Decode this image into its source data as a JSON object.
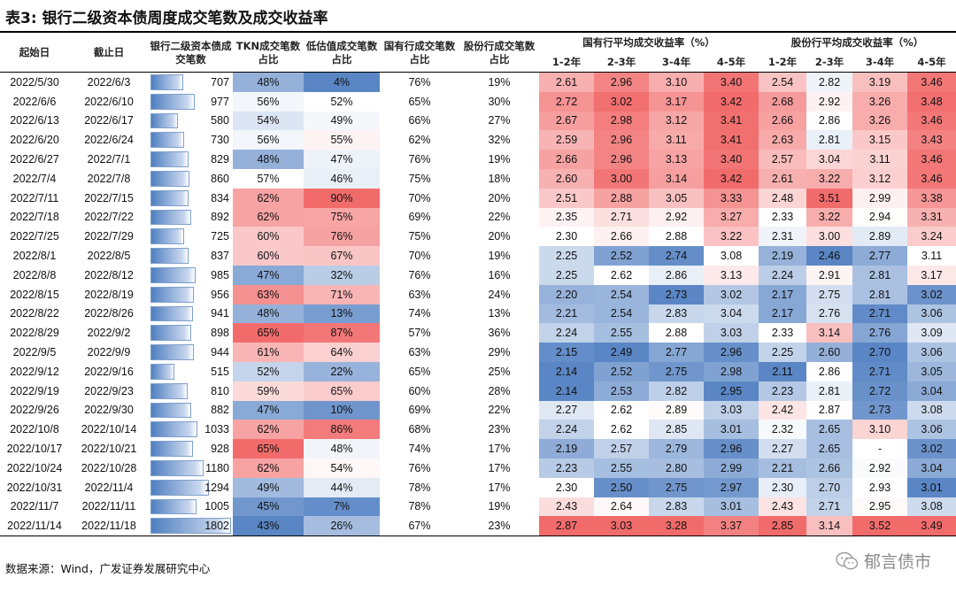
{
  "title": "表3: 银行二级资本债周度成交笔数及成交收益率",
  "headers": {
    "start": "起始日",
    "end": "截止日",
    "count": "银行二级资本债成交笔数",
    "tkn": "TKN成交笔数占比",
    "low": "低估值成交笔数占比",
    "state": "国有行成交笔数占比",
    "joint": "股份行成交笔数占比",
    "state_yield": "国有行平均成交收益率（%）",
    "joint_yield": "股份行平均成交收益率（%）",
    "terms": [
      "1-2年",
      "2-3年",
      "3-4年",
      "4-5年",
      "1-2年",
      "2-3年",
      "3-4年",
      "4-5年"
    ]
  },
  "rows": [
    {
      "start": "2022/5/30",
      "end": "2022/6/3",
      "count": "707",
      "tkn": "48%",
      "low": "4%",
      "state": "76%",
      "joint": "19%",
      "y": [
        "2.61",
        "2.96",
        "3.10",
        "3.40",
        "2.54",
        "2.82",
        "3.19",
        "3.46"
      ]
    },
    {
      "start": "2022/6/6",
      "end": "2022/6/10",
      "count": "977",
      "tkn": "56%",
      "low": "52%",
      "state": "65%",
      "joint": "30%",
      "y": [
        "2.72",
        "3.02",
        "3.17",
        "3.42",
        "2.68",
        "2.92",
        "3.26",
        "3.48"
      ]
    },
    {
      "start": "2022/6/13",
      "end": "2022/6/17",
      "count": "580",
      "tkn": "54%",
      "low": "49%",
      "state": "66%",
      "joint": "27%",
      "y": [
        "2.67",
        "2.98",
        "3.12",
        "3.41",
        "2.66",
        "2.86",
        "3.26",
        "3.46"
      ]
    },
    {
      "start": "2022/6/20",
      "end": "2022/6/24",
      "count": "730",
      "tkn": "56%",
      "low": "55%",
      "state": "62%",
      "joint": "32%",
      "y": [
        "2.59",
        "2.96",
        "3.11",
        "3.41",
        "2.63",
        "2.81",
        "3.15",
        "3.43"
      ]
    },
    {
      "start": "2022/6/27",
      "end": "2022/7/1",
      "count": "829",
      "tkn": "48%",
      "low": "47%",
      "state": "76%",
      "joint": "19%",
      "y": [
        "2.66",
        "2.96",
        "3.13",
        "3.40",
        "2.57",
        "3.04",
        "3.11",
        "3.46"
      ]
    },
    {
      "start": "2022/7/4",
      "end": "2022/7/8",
      "count": "860",
      "tkn": "57%",
      "low": "46%",
      "state": "75%",
      "joint": "18%",
      "y": [
        "2.60",
        "3.00",
        "3.14",
        "3.42",
        "2.61",
        "3.22",
        "3.12",
        "3.46"
      ]
    },
    {
      "start": "2022/7/11",
      "end": "2022/7/15",
      "count": "834",
      "tkn": "62%",
      "low": "90%",
      "state": "70%",
      "joint": "20%",
      "y": [
        "2.51",
        "2.88",
        "3.05",
        "3.33",
        "2.48",
        "3.51",
        "2.99",
        "3.38"
      ]
    },
    {
      "start": "2022/7/18",
      "end": "2022/7/22",
      "count": "892",
      "tkn": "62%",
      "low": "75%",
      "state": "69%",
      "joint": "22%",
      "y": [
        "2.35",
        "2.71",
        "2.92",
        "3.27",
        "2.33",
        "3.22",
        "2.94",
        "3.31"
      ]
    },
    {
      "start": "2022/7/25",
      "end": "2022/7/29",
      "count": "725",
      "tkn": "60%",
      "low": "76%",
      "state": "75%",
      "joint": "20%",
      "y": [
        "2.30",
        "2.66",
        "2.88",
        "3.22",
        "2.31",
        "3.00",
        "2.89",
        "3.24"
      ]
    },
    {
      "start": "2022/8/1",
      "end": "2022/8/5",
      "count": "837",
      "tkn": "60%",
      "low": "67%",
      "state": "70%",
      "joint": "19%",
      "y": [
        "2.25",
        "2.52",
        "2.74",
        "3.08",
        "2.19",
        "2.46",
        "2.77",
        "3.11"
      ]
    },
    {
      "start": "2022/8/8",
      "end": "2022/8/12",
      "count": "985",
      "tkn": "47%",
      "low": "32%",
      "state": "76%",
      "joint": "16%",
      "y": [
        "2.25",
        "2.62",
        "2.86",
        "3.13",
        "2.24",
        "2.91",
        "2.81",
        "3.17"
      ]
    },
    {
      "start": "2022/8/15",
      "end": "2022/8/19",
      "count": "956",
      "tkn": "63%",
      "low": "71%",
      "state": "63%",
      "joint": "24%",
      "y": [
        "2.20",
        "2.54",
        "2.73",
        "3.02",
        "2.17",
        "2.75",
        "2.81",
        "3.02"
      ]
    },
    {
      "start": "2022/8/22",
      "end": "2022/8/26",
      "count": "941",
      "tkn": "48%",
      "low": "13%",
      "state": "74%",
      "joint": "13%",
      "y": [
        "2.21",
        "2.54",
        "2.83",
        "3.04",
        "2.17",
        "2.76",
        "2.71",
        "3.06"
      ]
    },
    {
      "start": "2022/8/29",
      "end": "2022/9/2",
      "count": "898",
      "tkn": "65%",
      "low": "87%",
      "state": "57%",
      "joint": "36%",
      "y": [
        "2.24",
        "2.55",
        "2.88",
        "3.03",
        "2.33",
        "3.14",
        "2.76",
        "3.09"
      ]
    },
    {
      "start": "2022/9/5",
      "end": "2022/9/9",
      "count": "944",
      "tkn": "61%",
      "low": "64%",
      "state": "63%",
      "joint": "29%",
      "y": [
        "2.15",
        "2.49",
        "2.77",
        "2.96",
        "2.25",
        "2.60",
        "2.70",
        "3.06"
      ]
    },
    {
      "start": "2022/9/12",
      "end": "2022/9/16",
      "count": "515",
      "tkn": "52%",
      "low": "22%",
      "state": "65%",
      "joint": "25%",
      "y": [
        "2.14",
        "2.52",
        "2.75",
        "2.98",
        "2.11",
        "2.86",
        "2.71",
        "3.05"
      ]
    },
    {
      "start": "2022/9/19",
      "end": "2022/9/23",
      "count": "810",
      "tkn": "59%",
      "low": "65%",
      "state": "60%",
      "joint": "28%",
      "y": [
        "2.14",
        "2.53",
        "2.82",
        "2.95",
        "2.23",
        "2.81",
        "2.72",
        "3.04"
      ]
    },
    {
      "start": "2022/9/26",
      "end": "2022/9/30",
      "count": "882",
      "tkn": "47%",
      "low": "10%",
      "state": "69%",
      "joint": "22%",
      "y": [
        "2.27",
        "2.62",
        "2.89",
        "3.03",
        "2.42",
        "2.87",
        "2.73",
        "3.08"
      ]
    },
    {
      "start": "2022/10/8",
      "end": "2022/10/14",
      "count": "1033",
      "tkn": "62%",
      "low": "86%",
      "state": "68%",
      "joint": "23%",
      "y": [
        "2.24",
        "2.62",
        "2.85",
        "3.01",
        "2.32",
        "2.65",
        "3.10",
        "3.06"
      ]
    },
    {
      "start": "2022/10/17",
      "end": "2022/10/21",
      "count": "928",
      "tkn": "65%",
      "low": "48%",
      "state": "74%",
      "joint": "17%",
      "y": [
        "2.19",
        "2.57",
        "2.79",
        "2.96",
        "2.27",
        "2.65",
        "-",
        "3.02"
      ]
    },
    {
      "start": "2022/10/24",
      "end": "2022/10/28",
      "count": "1180",
      "tkn": "62%",
      "low": "54%",
      "state": "76%",
      "joint": "17%",
      "y": [
        "2.23",
        "2.55",
        "2.80",
        "2.99",
        "2.21",
        "2.66",
        "2.92",
        "3.04"
      ]
    },
    {
      "start": "2022/10/31",
      "end": "2022/11/4",
      "count": "1294",
      "tkn": "49%",
      "low": "44%",
      "state": "78%",
      "joint": "17%",
      "y": [
        "2.30",
        "2.50",
        "2.75",
        "2.97",
        "2.30",
        "2.70",
        "2.93",
        "3.01"
      ]
    },
    {
      "start": "2022/11/7",
      "end": "2022/11/11",
      "count": "1005",
      "tkn": "45%",
      "low": "7%",
      "state": "78%",
      "joint": "19%",
      "y": [
        "2.43",
        "2.64",
        "2.83",
        "3.01",
        "2.43",
        "2.71",
        "2.95",
        "3.08"
      ]
    },
    {
      "start": "2022/11/14",
      "end": "2022/11/18",
      "count": "1802",
      "tkn": "43%",
      "low": "26%",
      "state": "67%",
      "joint": "23%",
      "y": [
        "2.87",
        "3.03",
        "3.28",
        "3.37",
        "2.85",
        "3.14",
        "3.52",
        "3.49"
      ]
    }
  ],
  "source": "数据来源：Wind，广发证券发展研究中心",
  "watermark": "郁言债市",
  "colors": {
    "cold": "#5a86c5",
    "mid": "#ffffff",
    "hot": "#f26b6b",
    "count_bar": "#4f7fc0"
  }
}
